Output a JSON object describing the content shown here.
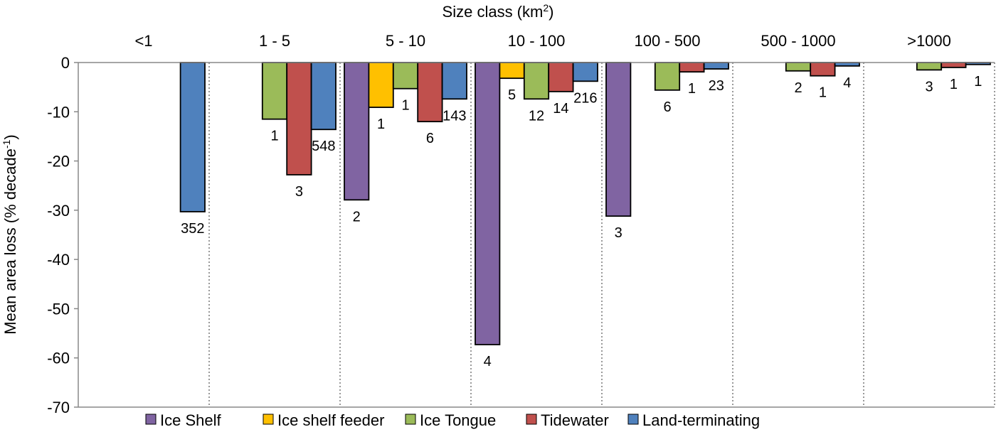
{
  "chart_data": {
    "type": "bar",
    "title": "Size class (km²)",
    "title_main": "Size class (km",
    "title_sup": "2",
    "ylabel_main": "Mean area loss (% decade",
    "ylabel_sup": "-1",
    "ylabel_end": ")",
    "ylim": [
      -70,
      0
    ],
    "yticks": [
      0,
      -10,
      -20,
      -30,
      -40,
      -50,
      -60,
      -70
    ],
    "grid": false,
    "legend_position": "bottom",
    "categories": [
      "<1",
      "1 - 5",
      "5 - 10",
      "10 - 100",
      "100 - 500",
      "500 - 1000",
      ">1000"
    ],
    "series": [
      {
        "name": "Ice Shelf",
        "color": "#8064A2",
        "values": [
          null,
          null,
          -27.9,
          -57.3,
          -31.2,
          null,
          null
        ],
        "labels": [
          null,
          null,
          "2",
          "4",
          "3",
          null,
          null
        ]
      },
      {
        "name": "Ice shelf feeder",
        "color": "#FFC000",
        "values": [
          null,
          null,
          -9.1,
          -3.2,
          null,
          null,
          null
        ],
        "labels": [
          null,
          null,
          "1",
          "5",
          null,
          null,
          null
        ]
      },
      {
        "name": "Ice Tongue",
        "color": "#9BBB59",
        "values": [
          null,
          -11.5,
          -5.3,
          -7.4,
          -5.6,
          -1.7,
          -1.5
        ],
        "labels": [
          null,
          "1",
          "1",
          "12",
          "6",
          "2",
          "3"
        ]
      },
      {
        "name": "Tidewater",
        "color": "#C0504D",
        "values": [
          null,
          -22.8,
          -12.0,
          -5.9,
          -1.9,
          -2.7,
          -1.0
        ],
        "labels": [
          null,
          "3",
          "6",
          "14",
          "1",
          "1",
          "1"
        ]
      },
      {
        "name": "Land-terminating",
        "color": "#4F81BD",
        "values": [
          -30.3,
          -13.6,
          -7.4,
          -3.8,
          -1.3,
          -0.7,
          -0.4
        ],
        "labels": [
          "352",
          "548",
          "143",
          "216",
          "23",
          "4",
          "1"
        ]
      }
    ]
  }
}
